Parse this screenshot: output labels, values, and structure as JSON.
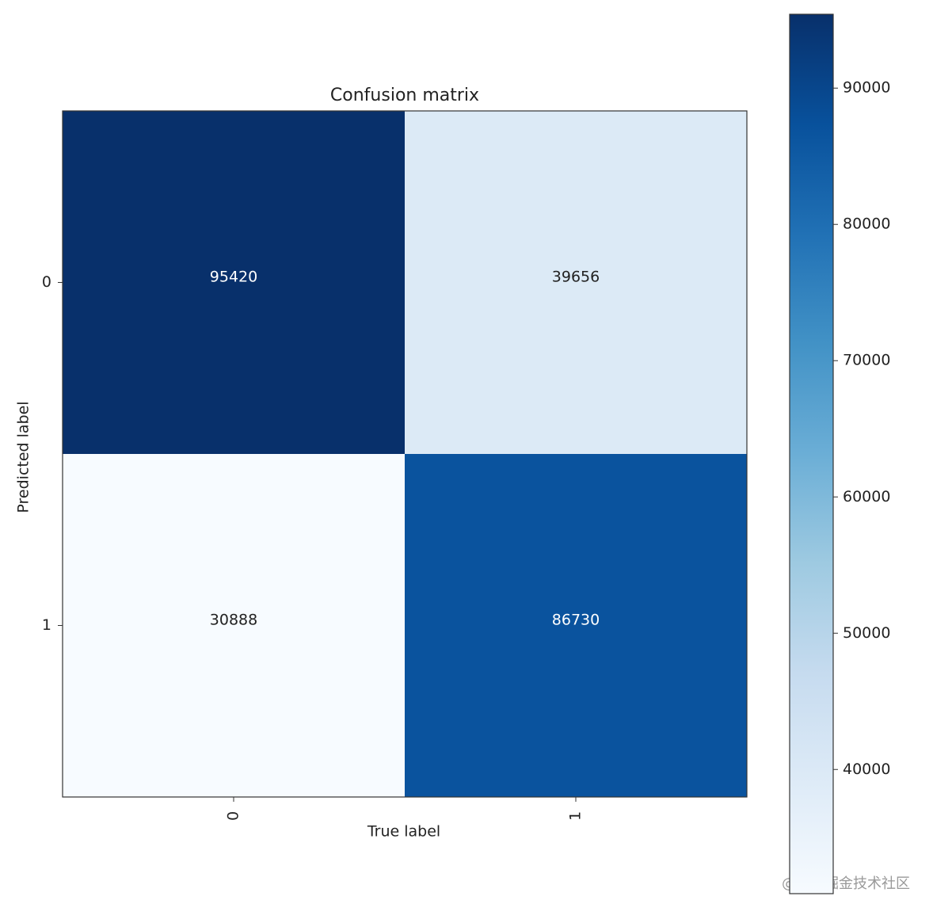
{
  "chart_data": {
    "type": "heatmap",
    "title": "Confusion matrix",
    "x_label": "True label",
    "y_label": "Predicted label",
    "x_categories": [
      "0",
      "1"
    ],
    "y_categories": [
      "0",
      "1"
    ],
    "values": [
      [
        95420,
        39656
      ],
      [
        30888,
        86730
      ]
    ],
    "colormap": [
      "#f7fbff",
      "#deebf7",
      "#c6dbef",
      "#9ecae1",
      "#6baed6",
      "#4292c6",
      "#2171b5",
      "#08519c",
      "#08306b"
    ],
    "colorbar": {
      "lim": [
        30888,
        95420
      ],
      "ticks": [
        40000,
        50000,
        60000,
        70000,
        80000,
        90000
      ]
    },
    "watermark": "@稀土掘金技术社区"
  }
}
